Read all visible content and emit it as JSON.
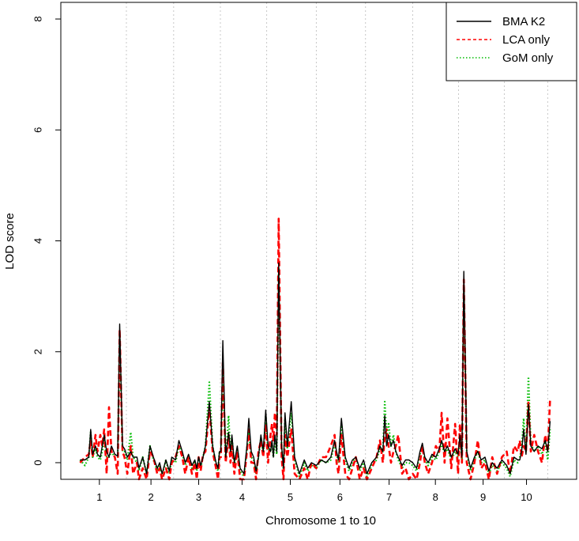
{
  "chart_data": {
    "type": "line",
    "title": "",
    "xlabel": "Chromosome 1 to 10",
    "ylabel": "LOD score",
    "ylim": [
      -0.3,
      8.3
    ],
    "xlim": [
      0,
      10.7
    ],
    "yticks": [
      "0",
      "2",
      "4",
      "6",
      "8"
    ],
    "chromosomes": [
      {
        "label": "1",
        "center": 0.8
      },
      {
        "label": "2",
        "center": 1.87
      },
      {
        "label": "3",
        "center": 2.86
      },
      {
        "label": "4",
        "center": 3.76
      },
      {
        "label": "5",
        "center": 4.76
      },
      {
        "label": "6",
        "center": 5.79
      },
      {
        "label": "7",
        "center": 6.81
      },
      {
        "label": "8",
        "center": 7.77
      },
      {
        "label": "9",
        "center": 8.76
      },
      {
        "label": "10",
        "center": 9.66
      }
    ],
    "boundaries": [
      1.36,
      2.34,
      3.31,
      4.27,
      5.3,
      6.32,
      7.3,
      8.25,
      9.2,
      10.1
    ],
    "grid": "vertical dotted lines at chromosome boundaries",
    "legend_position": "top-right",
    "series": [
      {
        "name": "BMA K2",
        "color": "#000000",
        "dash": "solid",
        "x": [
          0.4,
          0.5,
          0.58,
          0.62,
          0.66,
          0.72,
          0.76,
          0.82,
          0.86,
          0.9,
          0.95,
          1.0,
          1.05,
          1.12,
          1.18,
          1.22,
          1.28,
          1.32,
          1.38,
          1.45,
          1.5,
          1.58,
          1.62,
          1.7,
          1.78,
          1.85,
          1.92,
          2.0,
          2.05,
          2.1,
          2.18,
          2.25,
          2.3,
          2.38,
          2.45,
          2.52,
          2.58,
          2.65,
          2.72,
          2.78,
          2.82,
          2.86,
          2.9,
          2.95,
          3.0,
          3.08,
          3.15,
          3.22,
          3.26,
          3.29,
          3.32,
          3.36,
          3.42,
          3.48,
          3.52,
          3.55,
          3.6,
          3.66,
          3.72,
          3.8,
          3.86,
          3.9,
          3.95,
          4.0,
          4.05,
          4.1,
          4.15,
          4.2,
          4.25,
          4.3,
          4.35,
          4.38,
          4.41,
          4.44,
          4.48,
          4.52,
          4.58,
          4.62,
          4.65,
          4.7,
          4.78,
          4.85,
          4.95,
          5.05,
          5.12,
          5.2,
          5.3,
          5.4,
          5.5,
          5.6,
          5.68,
          5.72,
          5.76,
          5.82,
          5.9,
          5.98,
          6.05,
          6.12,
          6.2,
          6.28,
          6.35,
          6.45,
          6.55,
          6.62,
          6.68,
          6.72,
          6.76,
          6.8,
          6.85,
          6.9,
          6.95,
          7.0,
          7.08,
          7.15,
          7.22,
          7.3,
          7.38,
          7.45,
          7.5,
          7.55,
          7.62,
          7.7,
          7.78,
          7.85,
          7.9,
          7.96,
          8.02,
          8.1,
          8.18,
          8.24,
          8.28,
          8.32,
          8.36,
          8.42,
          8.5,
          8.58,
          8.65,
          8.72,
          8.8,
          8.88,
          8.95,
          9.05,
          9.15,
          9.25,
          9.32,
          9.4,
          9.48,
          9.52,
          9.56,
          9.6,
          9.65,
          9.7,
          9.75,
          9.82,
          9.9,
          9.98,
          10.05,
          10.1,
          10.15
        ],
        "y": [
          0.05,
          0.05,
          0.1,
          0.6,
          0.15,
          0.3,
          0.15,
          0.1,
          0.3,
          0.5,
          0.2,
          0.1,
          0.3,
          0.15,
          0.12,
          2.5,
          0.3,
          0.25,
          0.1,
          0.2,
          0.1,
          0.1,
          -0.1,
          0.1,
          -0.2,
          0.3,
          0.1,
          -0.1,
          0.0,
          -0.2,
          0.05,
          -0.15,
          0.1,
          0.05,
          0.4,
          0.2,
          0.0,
          0.15,
          -0.05,
          0.05,
          -0.1,
          0.1,
          -0.05,
          0.1,
          0.3,
          1.1,
          0.3,
          0.0,
          -0.1,
          0.2,
          0.2,
          2.2,
          0.1,
          0.55,
          0.2,
          0.5,
          0.0,
          0.3,
          -0.1,
          -0.2,
          0.3,
          0.8,
          0.2,
          0.1,
          -0.15,
          0.1,
          0.5,
          0.2,
          0.95,
          0.3,
          0.2,
          0.4,
          0.1,
          0.5,
          0.2,
          3.6,
          0.3,
          -0.1,
          0.9,
          0.3,
          1.1,
          0.1,
          -0.2,
          0.05,
          -0.1,
          0.0,
          -0.05,
          0.05,
          0.0,
          0.1,
          0.4,
          0.2,
          0.05,
          0.8,
          0.1,
          -0.1,
          0.05,
          0.1,
          -0.1,
          0.05,
          -0.2,
          0.0,
          0.1,
          0.3,
          0.2,
          0.85,
          0.3,
          0.5,
          0.3,
          0.4,
          0.2,
          0.1,
          -0.05,
          0.05,
          0.05,
          0.0,
          -0.1,
          0.2,
          0.35,
          0.1,
          0.0,
          0.15,
          0.1,
          0.25,
          0.4,
          0.2,
          0.3,
          0.1,
          0.25,
          0.15,
          0.5,
          0.1,
          3.45,
          0.2,
          -0.1,
          0.1,
          0.2,
          0.05,
          0.1,
          -0.15,
          0.0,
          -0.1,
          0.05,
          -0.05,
          -0.2,
          0.1,
          0.05,
          0.05,
          0.2,
          0.6,
          0.15,
          1.05,
          0.3,
          0.2,
          0.3,
          0.25,
          0.4,
          0.2,
          0.75
        ]
      },
      {
        "name": "LCA only",
        "color": "#ff0000",
        "dash": "dashed",
        "x": [
          0.4,
          0.5,
          0.58,
          0.62,
          0.66,
          0.72,
          0.76,
          0.82,
          0.86,
          0.9,
          0.95,
          1.0,
          1.05,
          1.12,
          1.18,
          1.22,
          1.28,
          1.32,
          1.38,
          1.45,
          1.5,
          1.58,
          1.62,
          1.7,
          1.78,
          1.85,
          1.92,
          2.0,
          2.05,
          2.1,
          2.18,
          2.25,
          2.3,
          2.38,
          2.45,
          2.52,
          2.58,
          2.65,
          2.72,
          2.78,
          2.82,
          2.86,
          2.9,
          2.95,
          3.0,
          3.08,
          3.15,
          3.22,
          3.26,
          3.29,
          3.32,
          3.36,
          3.42,
          3.48,
          3.52,
          3.55,
          3.6,
          3.66,
          3.72,
          3.8,
          3.86,
          3.9,
          3.95,
          4.0,
          4.05,
          4.1,
          4.15,
          4.2,
          4.25,
          4.3,
          4.35,
          4.38,
          4.41,
          4.44,
          4.48,
          4.52,
          4.58,
          4.62,
          4.65,
          4.7,
          4.78,
          4.85,
          4.95,
          5.05,
          5.12,
          5.2,
          5.3,
          5.4,
          5.5,
          5.6,
          5.68,
          5.72,
          5.76,
          5.82,
          5.9,
          5.98,
          6.05,
          6.12,
          6.2,
          6.28,
          6.35,
          6.45,
          6.55,
          6.62,
          6.68,
          6.72,
          6.76,
          6.8,
          6.85,
          6.9,
          6.95,
          7.0,
          7.08,
          7.15,
          7.22,
          7.3,
          7.38,
          7.45,
          7.5,
          7.55,
          7.62,
          7.7,
          7.78,
          7.85,
          7.9,
          7.96,
          8.02,
          8.1,
          8.18,
          8.24,
          8.28,
          8.32,
          8.36,
          8.42,
          8.5,
          8.58,
          8.65,
          8.72,
          8.8,
          8.88,
          8.95,
          9.05,
          9.15,
          9.25,
          9.32,
          9.4,
          9.48,
          9.52,
          9.56,
          9.6,
          9.65,
          9.7,
          9.75,
          9.82,
          9.9,
          9.98,
          10.05,
          10.1,
          10.15
        ],
        "y": [
          0.0,
          0.1,
          0.15,
          0.4,
          0.1,
          0.5,
          0.2,
          0.5,
          0.3,
          0.6,
          -0.2,
          1.0,
          0.2,
          0.1,
          -0.2,
          2.4,
          0.2,
          0.1,
          -0.2,
          0.3,
          -0.2,
          0.0,
          -0.3,
          -0.1,
          -0.3,
          0.2,
          0.1,
          -0.2,
          -0.1,
          -0.3,
          -0.1,
          -0.3,
          0.0,
          0.1,
          0.3,
          0.1,
          -0.2,
          0.1,
          -0.2,
          0.0,
          -0.3,
          0.1,
          -0.15,
          0.15,
          0.2,
          1.0,
          0.2,
          -0.1,
          -0.3,
          0.1,
          0.1,
          1.8,
          0.0,
          0.5,
          0.0,
          0.3,
          -0.2,
          0.2,
          -0.3,
          -0.3,
          0.2,
          0.6,
          0.0,
          0.0,
          -0.3,
          0.2,
          0.4,
          0.1,
          0.7,
          0.0,
          0.5,
          0.7,
          0.4,
          0.9,
          0.5,
          4.4,
          0.1,
          -0.3,
          0.5,
          0.1,
          0.6,
          -0.2,
          -0.3,
          -0.1,
          -0.3,
          0.0,
          -0.1,
          0.1,
          0.1,
          0.3,
          0.5,
          0.0,
          -0.2,
          0.5,
          -0.2,
          -0.3,
          -0.1,
          0.1,
          -0.3,
          -0.1,
          -0.3,
          -0.1,
          0.1,
          0.4,
          0.0,
          0.5,
          0.6,
          0.3,
          0.0,
          0.2,
          0.3,
          0.5,
          -0.2,
          -0.1,
          -0.3,
          -0.2,
          -0.3,
          0.0,
          0.3,
          0.0,
          -0.2,
          0.0,
          0.3,
          0.2,
          0.9,
          0.0,
          0.8,
          -0.1,
          0.7,
          -0.2,
          0.7,
          0.0,
          3.3,
          0.0,
          -0.3,
          0.0,
          0.4,
          -0.1,
          0.0,
          -0.3,
          0.1,
          -0.2,
          0.1,
          0.2,
          -0.2,
          0.3,
          0.2,
          0.4,
          0.1,
          0.3,
          0.2,
          1.1,
          0.2,
          0.5,
          0.2,
          0.0,
          0.5,
          0.2,
          1.15
        ]
      },
      {
        "name": "GoM only",
        "color": "#00bb00",
        "dash": "dotted",
        "x": [
          0.4,
          0.5,
          0.58,
          0.62,
          0.66,
          0.72,
          0.76,
          0.82,
          0.86,
          0.9,
          0.95,
          1.0,
          1.05,
          1.12,
          1.18,
          1.22,
          1.28,
          1.32,
          1.38,
          1.45,
          1.5,
          1.58,
          1.62,
          1.7,
          1.78,
          1.85,
          1.92,
          2.0,
          2.05,
          2.1,
          2.18,
          2.25,
          2.3,
          2.38,
          2.45,
          2.52,
          2.58,
          2.65,
          2.72,
          2.78,
          2.82,
          2.86,
          2.9,
          2.95,
          3.0,
          3.08,
          3.15,
          3.22,
          3.26,
          3.29,
          3.32,
          3.36,
          3.42,
          3.48,
          3.52,
          3.55,
          3.6,
          3.66,
          3.72,
          3.8,
          3.86,
          3.9,
          3.95,
          4.0,
          4.05,
          4.1,
          4.15,
          4.2,
          4.25,
          4.3,
          4.35,
          4.38,
          4.41,
          4.44,
          4.48,
          4.52,
          4.58,
          4.62,
          4.65,
          4.7,
          4.78,
          4.85,
          4.95,
          5.05,
          5.12,
          5.2,
          5.3,
          5.4,
          5.5,
          5.6,
          5.68,
          5.72,
          5.76,
          5.82,
          5.9,
          5.98,
          6.05,
          6.12,
          6.2,
          6.28,
          6.35,
          6.45,
          6.55,
          6.62,
          6.68,
          6.72,
          6.76,
          6.8,
          6.85,
          6.9,
          6.95,
          7.0,
          7.08,
          7.15,
          7.22,
          7.3,
          7.38,
          7.45,
          7.5,
          7.55,
          7.62,
          7.7,
          7.78,
          7.85,
          7.9,
          7.96,
          8.02,
          8.1,
          8.18,
          8.24,
          8.28,
          8.32,
          8.36,
          8.42,
          8.5,
          8.58,
          8.65,
          8.72,
          8.8,
          8.88,
          8.95,
          9.05,
          9.15,
          9.25,
          9.32,
          9.4,
          9.48,
          9.52,
          9.56,
          9.6,
          9.65,
          9.7,
          9.75,
          9.82,
          9.9,
          9.98,
          10.05,
          10.1,
          10.15
        ],
        "y": [
          0.05,
          -0.05,
          0.1,
          0.55,
          0.1,
          0.25,
          0.1,
          0.05,
          0.2,
          0.4,
          0.1,
          0.1,
          0.2,
          0.1,
          0.1,
          2.3,
          0.2,
          0.2,
          0.05,
          0.55,
          0.1,
          0.0,
          -0.15,
          0.1,
          -0.2,
          0.3,
          0.05,
          -0.15,
          -0.05,
          -0.25,
          0.05,
          -0.2,
          0.05,
          0.0,
          0.3,
          0.15,
          -0.05,
          0.1,
          -0.1,
          0.0,
          -0.15,
          0.1,
          -0.1,
          0.1,
          0.3,
          1.45,
          0.3,
          -0.05,
          -0.15,
          0.2,
          0.2,
          1.6,
          0.05,
          0.85,
          0.15,
          0.45,
          -0.05,
          0.25,
          -0.15,
          -0.25,
          0.25,
          0.55,
          0.1,
          0.05,
          -0.2,
          0.1,
          0.45,
          0.15,
          0.85,
          0.2,
          0.2,
          0.35,
          0.1,
          0.4,
          0.15,
          3.5,
          0.25,
          -0.15,
          0.8,
          0.25,
          0.9,
          0.05,
          -0.25,
          0.0,
          -0.15,
          -0.05,
          -0.1,
          0.05,
          0.0,
          0.05,
          0.35,
          0.15,
          0.0,
          0.7,
          0.05,
          -0.15,
          0.0,
          0.1,
          -0.15,
          0.0,
          -0.25,
          -0.05,
          0.05,
          0.25,
          0.2,
          1.1,
          0.5,
          0.7,
          0.3,
          0.5,
          0.2,
          0.05,
          -0.1,
          0.0,
          0.0,
          -0.05,
          -0.15,
          0.15,
          0.3,
          0.05,
          -0.05,
          0.1,
          0.05,
          0.2,
          0.35,
          0.15,
          0.25,
          0.05,
          0.2,
          0.1,
          0.45,
          0.05,
          3.2,
          0.15,
          -0.15,
          0.05,
          0.2,
          0.0,
          0.05,
          -0.2,
          -0.05,
          -0.15,
          0.0,
          -0.1,
          -0.25,
          0.05,
          0.0,
          0.1,
          0.25,
          0.8,
          0.2,
          1.55,
          0.35,
          0.2,
          0.3,
          0.15,
          0.35,
          0.05,
          0.6
        ]
      }
    ]
  }
}
